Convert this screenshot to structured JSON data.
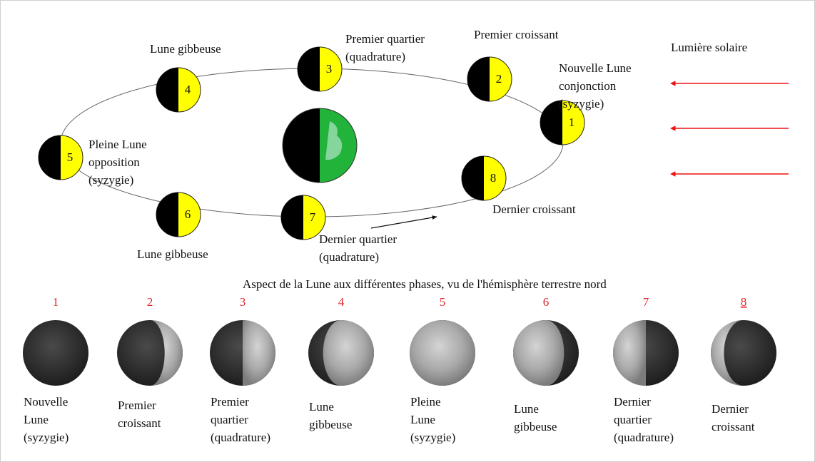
{
  "orbit": {
    "moons": [
      "1",
      "2",
      "3",
      "4",
      "5",
      "6",
      "7",
      "8"
    ],
    "labels": [
      [
        "Nouvelle Lune",
        "conjonction",
        "(syzygie)"
      ],
      [
        "Premier croissant"
      ],
      [
        "Premier quartier",
        "(quadrature)"
      ],
      [
        "Lune gibbeuse"
      ],
      [
        "Pleine Lune",
        "opposition",
        "(syzygie)"
      ],
      [
        "Lune gibbeuse"
      ],
      [
        "Dernier quartier",
        "(quadrature)"
      ],
      [
        "Dernier croissant"
      ]
    ],
    "sunlight": "Lumière solaire"
  },
  "caption": "Aspect de la Lune aux différentes phases, vu de l'hémisphère terrestre nord",
  "phases": [
    {
      "number": "1",
      "label": [
        "Nouvelle",
        "Lune",
        "(syzygie)"
      ]
    },
    {
      "number": "2",
      "label": [
        "Premier",
        "croissant"
      ]
    },
    {
      "number": "3",
      "label": [
        "Premier",
        "quartier",
        "(quadrature)"
      ]
    },
    {
      "number": "4",
      "label": [
        "Lune",
        "gibbeuse"
      ]
    },
    {
      "number": "5",
      "label": [
        "Pleine",
        "Lune",
        "(syzygie)"
      ]
    },
    {
      "number": "6",
      "label": [
        "Lune",
        "gibbeuse"
      ]
    },
    {
      "number": "7",
      "label": [
        "Dernier",
        "quartier",
        "(quadrature)"
      ]
    },
    {
      "number": "8",
      "label": [
        "Dernier",
        "croissant"
      ]
    }
  ]
}
